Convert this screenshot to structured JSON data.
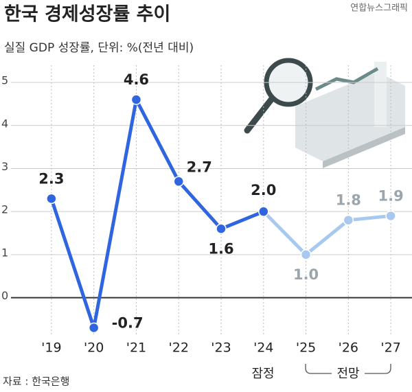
{
  "chart_data": {
    "type": "line",
    "title": "한국 경제성장률 추이",
    "subtitle": "실질 GDP 성장률, 단위: %(전년 대비)",
    "credit": "연합뉴스그래픽",
    "source": "자료 : 한국은행",
    "categories": [
      "'19",
      "'20",
      "'21",
      "'22",
      "'23",
      "'24",
      "'25",
      "'26",
      "'27"
    ],
    "values": [
      2.3,
      -0.7,
      4.6,
      2.7,
      1.6,
      2.0,
      1.0,
      1.8,
      1.9
    ],
    "value_labels": [
      "2.3",
      "-0.7",
      "4.6",
      "2.7",
      "1.6",
      "2.0",
      "1.0",
      "1.8",
      "1.9"
    ],
    "point_colors": [
      "#2f66e0",
      "#2f66e0",
      "#2f66e0",
      "#2f66e0",
      "#2f66e0",
      "#2f66e0",
      "#a9c8f0",
      "#a9c8f0",
      "#a9c8f0"
    ],
    "annotations": [
      "잠정",
      "전망"
    ],
    "ylim": [
      -0.9,
      5.4
    ],
    "yticks": [
      0,
      1,
      2,
      3,
      4,
      5
    ],
    "grid": true
  }
}
